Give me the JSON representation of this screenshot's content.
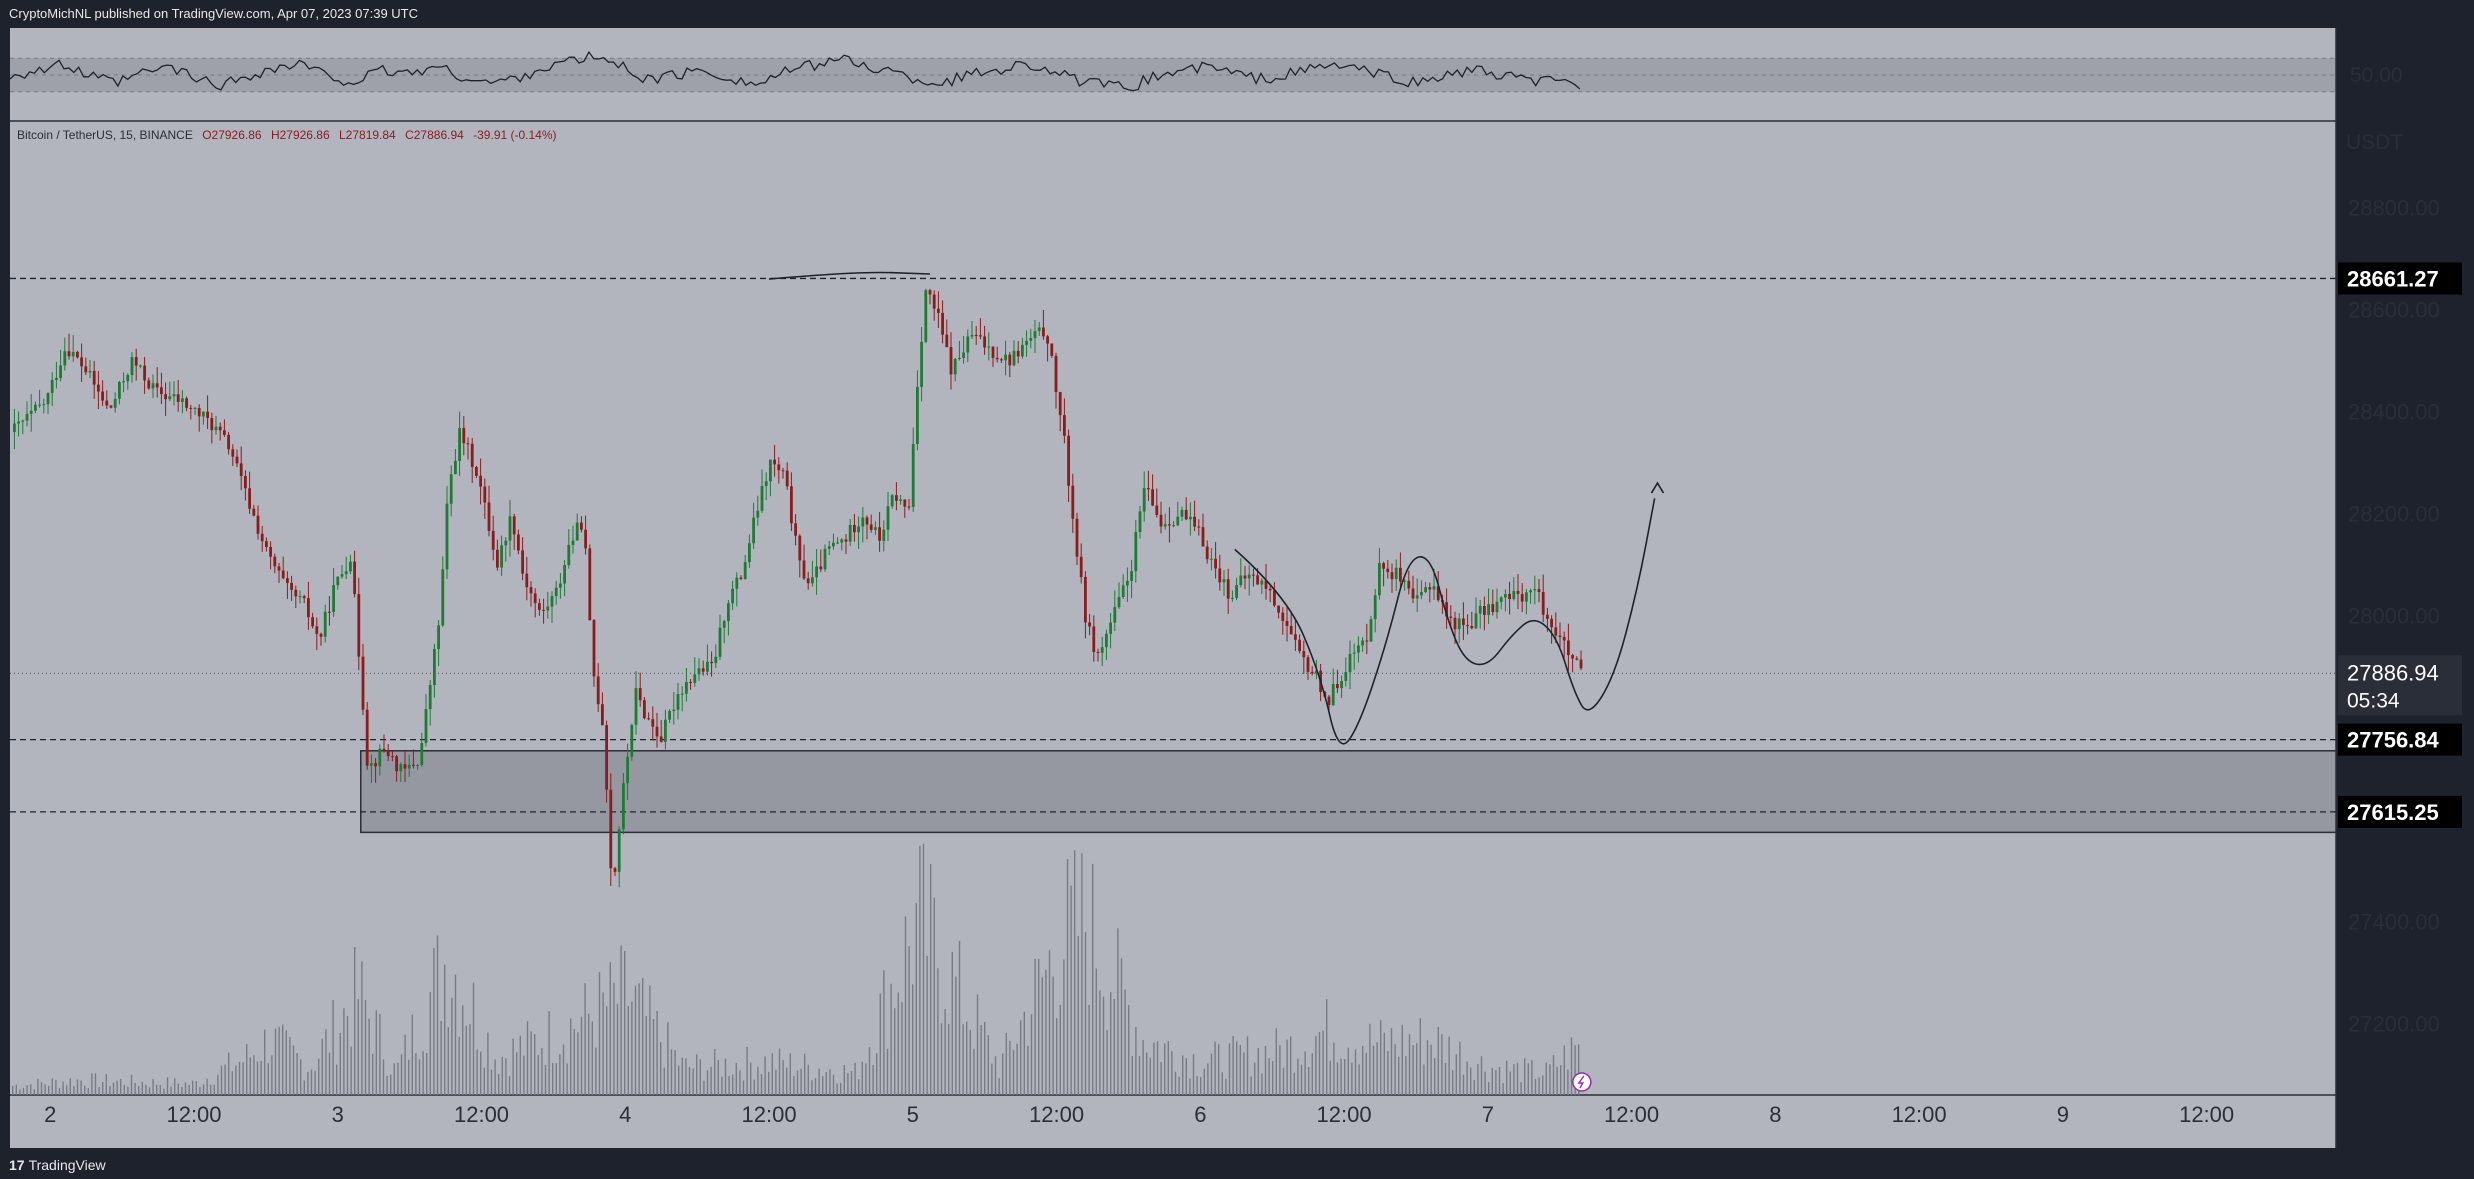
{
  "header": {
    "publisher_text": "CryptoMichNL published on TradingView.com, Apr 07, 2023 07:39 UTC"
  },
  "footer": {
    "logo_text": "17",
    "brand": "TradingView"
  },
  "colors": {
    "background": "#b2b5be",
    "frame": "#1e222d",
    "up_candle": "#1e7a34",
    "down_candle": "#8a1c1c",
    "price_tag": "#000000",
    "current_price_tag": "#2a2e39",
    "zone_fill": "#9598a1"
  },
  "chart_data": {
    "type": "candlestick",
    "symbol_line": {
      "name": "Bitcoin / TetherUS, 15, BINANCE",
      "open": "O27926.86",
      "high": "H27926.86",
      "low": "L27819.84",
      "close": "C27886.94",
      "change": "-39.91 (-0.14%)"
    },
    "currency": "USDT",
    "ylim": [
      27060,
      28970
    ],
    "y_ticks": [
      "28800.00",
      "28600.00",
      "28400.00",
      "28200.00",
      "28000.00",
      "27400.00",
      "27200.00"
    ],
    "x_ticks": [
      {
        "label": "2",
        "t": 1.0
      },
      {
        "label": "12:00",
        "t": 1.5
      },
      {
        "label": "3",
        "t": 2.0
      },
      {
        "label": "12:00",
        "t": 2.5
      },
      {
        "label": "4",
        "t": 3.0
      },
      {
        "label": "12:00",
        "t": 3.5
      },
      {
        "label": "5",
        "t": 4.0
      },
      {
        "label": "12:00",
        "t": 4.5
      },
      {
        "label": "6",
        "t": 5.0
      },
      {
        "label": "12:00",
        "t": 5.5
      },
      {
        "label": "7",
        "t": 6.0
      },
      {
        "label": "12:00",
        "t": 6.5
      },
      {
        "label": "8",
        "t": 7.0
      },
      {
        "label": "12:00",
        "t": 7.5
      },
      {
        "label": "9",
        "t": 8.0
      },
      {
        "label": "12:00",
        "t": 8.5
      }
    ],
    "x_range_days": [
      0.86,
      8.95
    ],
    "price_levels": [
      {
        "label": "28661.27",
        "value": 28661.27,
        "style": "dashed"
      },
      {
        "label": "27756.84",
        "value": 27756.84,
        "style": "dashed"
      },
      {
        "label": "27615.25",
        "value": 27615.25,
        "style": "dashed"
      }
    ],
    "current_price": {
      "label": "27886.94",
      "value": 27886.94,
      "countdown": "05:34"
    },
    "support_zone": {
      "start_t": 2.08,
      "top": 27735,
      "bottom": 27575
    },
    "price_path": [
      [
        0.86,
        28360
      ],
      [
        0.98,
        28420
      ],
      [
        1.05,
        28530
      ],
      [
        1.12,
        28480
      ],
      [
        1.2,
        28400
      ],
      [
        1.28,
        28500
      ],
      [
        1.36,
        28440
      ],
      [
        1.45,
        28420
      ],
      [
        1.55,
        28380
      ],
      [
        1.62,
        28330
      ],
      [
        1.68,
        28230
      ],
      [
        1.75,
        28120
      ],
      [
        1.82,
        28050
      ],
      [
        1.88,
        28020
      ],
      [
        1.93,
        27950
      ],
      [
        1.98,
        28050
      ],
      [
        2.04,
        28120
      ],
      [
        2.08,
        27850
      ],
      [
        2.1,
        27700
      ],
      [
        2.16,
        27740
      ],
      [
        2.22,
        27690
      ],
      [
        2.28,
        27720
      ],
      [
        2.35,
        28000
      ],
      [
        2.38,
        28250
      ],
      [
        2.42,
        28360
      ],
      [
        2.48,
        28280
      ],
      [
        2.55,
        28100
      ],
      [
        2.6,
        28200
      ],
      [
        2.64,
        28080
      ],
      [
        2.7,
        28000
      ],
      [
        2.76,
        28050
      ],
      [
        2.8,
        28140
      ],
      [
        2.85,
        28190
      ],
      [
        2.88,
        27900
      ],
      [
        2.92,
        27780
      ],
      [
        2.95,
        27450
      ],
      [
        2.98,
        27620
      ],
      [
        3.03,
        27850
      ],
      [
        3.07,
        27800
      ],
      [
        3.12,
        27760
      ],
      [
        3.18,
        27850
      ],
      [
        3.24,
        27890
      ],
      [
        3.3,
        27900
      ],
      [
        3.35,
        28030
      ],
      [
        3.4,
        28080
      ],
      [
        3.45,
        28200
      ],
      [
        3.5,
        28300
      ],
      [
        3.55,
        28270
      ],
      [
        3.6,
        28100
      ],
      [
        3.64,
        28060
      ],
      [
        3.7,
        28130
      ],
      [
        3.76,
        28150
      ],
      [
        3.82,
        28200
      ],
      [
        3.88,
        28150
      ],
      [
        3.93,
        28240
      ],
      [
        3.98,
        28200
      ],
      [
        4.01,
        28450
      ],
      [
        4.04,
        28640
      ],
      [
        4.08,
        28590
      ],
      [
        4.13,
        28480
      ],
      [
        4.2,
        28550
      ],
      [
        4.27,
        28520
      ],
      [
        4.33,
        28500
      ],
      [
        4.4,
        28540
      ],
      [
        4.46,
        28560
      ],
      [
        4.52,
        28350
      ],
      [
        4.56,
        28150
      ],
      [
        4.6,
        27980
      ],
      [
        4.64,
        27920
      ],
      [
        4.7,
        28010
      ],
      [
        4.75,
        28080
      ],
      [
        4.8,
        28250
      ],
      [
        4.86,
        28180
      ],
      [
        4.93,
        28200
      ],
      [
        4.99,
        28160
      ],
      [
        5.04,
        28100
      ],
      [
        5.1,
        28040
      ],
      [
        5.16,
        28080
      ],
      [
        5.22,
        28060
      ],
      [
        5.28,
        28000
      ],
      [
        5.34,
        27920
      ],
      [
        5.4,
        27880
      ],
      [
        5.44,
        27830
      ],
      [
        5.48,
        27880
      ],
      [
        5.52,
        27920
      ],
      [
        5.57,
        27950
      ],
      [
        5.62,
        28100
      ],
      [
        5.68,
        28080
      ],
      [
        5.74,
        28020
      ],
      [
        5.8,
        28070
      ],
      [
        5.86,
        27990
      ],
      [
        5.92,
        27980
      ],
      [
        5.98,
        28010
      ],
      [
        6.04,
        28030
      ],
      [
        6.1,
        28040
      ],
      [
        6.16,
        28050
      ],
      [
        6.2,
        28000
      ],
      [
        6.24,
        27960
      ],
      [
        6.28,
        27920
      ],
      [
        6.32,
        27886
      ]
    ],
    "volume_path": [
      [
        0.86,
        0.05
      ],
      [
        1.1,
        0.08
      ],
      [
        1.5,
        0.06
      ],
      [
        1.68,
        0.2
      ],
      [
        1.76,
        0.3
      ],
      [
        1.9,
        0.15
      ],
      [
        2.07,
        0.55
      ],
      [
        2.2,
        0.12
      ],
      [
        2.38,
        0.75
      ],
      [
        2.55,
        0.2
      ],
      [
        2.78,
        0.35
      ],
      [
        2.93,
        0.48
      ],
      [
        3.0,
        0.55
      ],
      [
        3.2,
        0.15
      ],
      [
        3.5,
        0.18
      ],
      [
        3.8,
        0.12
      ],
      [
        4.02,
        0.95
      ],
      [
        4.3,
        0.15
      ],
      [
        4.52,
        0.85
      ],
      [
        4.6,
        0.95
      ],
      [
        4.8,
        0.3
      ],
      [
        5.0,
        0.18
      ],
      [
        5.3,
        0.25
      ],
      [
        5.44,
        0.35
      ],
      [
        5.6,
        0.28
      ],
      [
        5.8,
        0.3
      ],
      [
        6.0,
        0.15
      ],
      [
        6.2,
        0.12
      ],
      [
        6.3,
        0.25
      ]
    ],
    "drawings": {
      "arc_top": [
        [
          3.5,
          28660
        ],
        [
          3.8,
          28675
        ],
        [
          4.06,
          28670
        ]
      ],
      "pattern_curve": [
        [
          5.12,
          28130
        ],
        [
          5.3,
          28040
        ],
        [
          5.42,
          27880
        ],
        [
          5.48,
          27730
        ],
        [
          5.55,
          27780
        ],
        [
          5.65,
          27950
        ],
        [
          5.72,
          28110
        ],
        [
          5.8,
          28120
        ],
        [
          5.86,
          27990
        ],
        [
          5.92,
          27910
        ],
        [
          6.0,
          27900
        ],
        [
          6.08,
          27960
        ],
        [
          6.16,
          28000
        ],
        [
          6.24,
          27960
        ],
        [
          6.3,
          27850
        ],
        [
          6.35,
          27800
        ],
        [
          6.44,
          27880
        ],
        [
          6.52,
          28050
        ],
        [
          6.58,
          28230
        ]
      ],
      "arrow_tip": [
        6.59,
        28260
      ]
    },
    "oscillator": {
      "level_label": "50.00",
      "band": [
        30,
        70
      ],
      "values": [
        50,
        55,
        62,
        48,
        40,
        52,
        60,
        45,
        38,
        50,
        58,
        63,
        47,
        42,
        55,
        52,
        60,
        48,
        40,
        46,
        58,
        66,
        72,
        60,
        44,
        50,
        55,
        48,
        38,
        52,
        60,
        70,
        62,
        55,
        45,
        40,
        50,
        56,
        63,
        58,
        44,
        38,
        34,
        48,
        55,
        60,
        52,
        45,
        50,
        58,
        62,
        54,
        46,
        40,
        50,
        56,
        48,
        44,
        42,
        38
      ]
    }
  }
}
